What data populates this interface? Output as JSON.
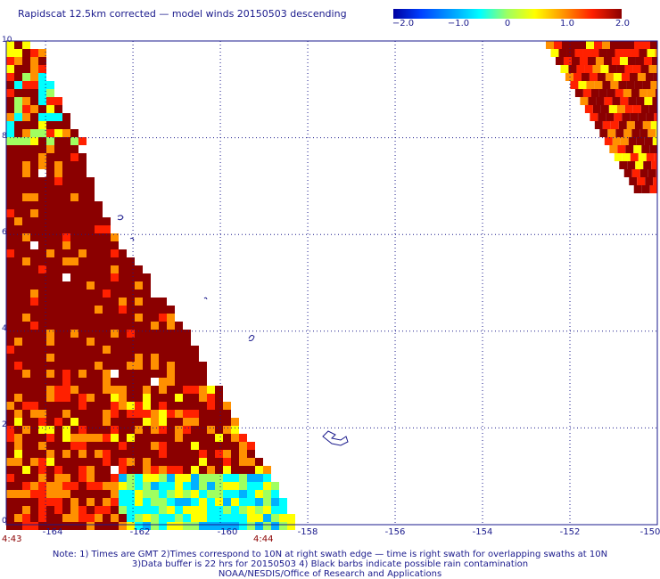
{
  "title": "Rapidscat 12.5km corrected — model winds 20150503 descending",
  "colorbar": {
    "ticks": [
      "−2.0",
      "−1.0",
      "0",
      "1.0",
      "2.0"
    ],
    "tick_values": [
      -2,
      -1,
      0,
      1,
      2
    ],
    "colors": [
      "#0000a0",
      "#0040ff",
      "#00b0ff",
      "#00ffff",
      "#a0ff60",
      "#ffff00",
      "#ff9000",
      "#ff2000",
      "#8b0000"
    ]
  },
  "axes": {
    "x_ticks": [
      "-164",
      "-162",
      "-160",
      "-158",
      "-156",
      "-154",
      "-152",
      "-150"
    ],
    "x_values": [
      -164,
      -162,
      -160,
      -158,
      -156,
      -154,
      -152,
      -150
    ],
    "y_ticks": [
      "0",
      "2",
      "4",
      "6",
      "8",
      "10"
    ],
    "y_values": [
      0,
      2,
      4,
      6,
      8,
      10
    ],
    "xlim": [
      -164.9,
      -150
    ],
    "ylim": [
      0,
      10
    ],
    "grid": true
  },
  "times": {
    "left": "4:43",
    "right": "4:44"
  },
  "notes": [
    "Note: 1) Times are GMT 2)Times correspond to 10N at right swath edge — time is right swath for overlapping swaths at 10N",
    "3)Data buffer is 22 hrs for 20150503 4) Black barbs indicate possible rain contamination",
    "NOAA/NESDIS/Office of Research and Applications"
  ]
}
